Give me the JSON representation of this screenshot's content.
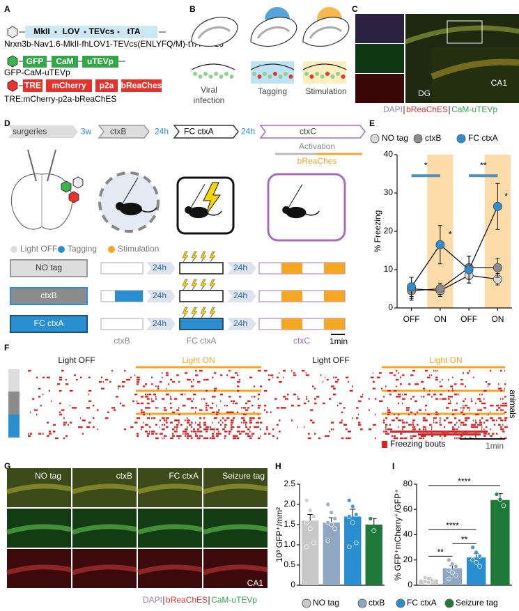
{
  "panel_labels": [
    "A",
    "B",
    "C",
    "D",
    "E",
    "F",
    "G",
    "H",
    "I"
  ],
  "a": {
    "construct1": [
      "MkII",
      "LOV",
      "TEVcs",
      "tTA"
    ],
    "name1": "Nrxn3b-Nav1.6-MkII-fhLOV1-TEVcs(ENLYFQ/M)-tTA-VP16",
    "construct2": [
      "GFP",
      "CaM",
      "uTEVp"
    ],
    "name2": "GFP-CaM-uTEVp",
    "construct3": [
      "TRE",
      "mCherry",
      "p2a",
      "bReaChes"
    ],
    "name3": "TRE:mCherry-p2a-bReaChES"
  },
  "b": {
    "step1": [
      "Viral",
      "infection"
    ],
    "step2": "Tagging",
    "step3": "Stimulation"
  },
  "c": {
    "dg": "DG",
    "ca1": "CA1",
    "caption": [
      "DAPI",
      "bReaChES",
      "CaM-uTEVp"
    ]
  },
  "d": {
    "timeline": [
      "surgeries",
      "3w",
      "ctxB",
      "24h",
      "FC ctxA",
      "24h",
      "ctxC"
    ],
    "activation": "Activation",
    "light": "bReaChes",
    "legend": [
      "Light OFF",
      "Tagging",
      "Stimulation"
    ],
    "groups": [
      "NO tag",
      "ctxB",
      "FC ctxA"
    ],
    "interval": "24h",
    "phases": [
      "ctxB",
      "FC ctxA",
      "ctxC"
    ],
    "scale": "1min"
  },
  "f": {
    "headers": [
      "Light OFF",
      "Light ON",
      "Light OFF",
      "Light ON"
    ],
    "axis": "animals",
    "legend": "Freezing bouts",
    "scale": "1min"
  },
  "g": {
    "groups": [
      "NO tag",
      "ctxB",
      "FC ctxA",
      "Seizure tag"
    ],
    "region": "CA1",
    "caption": [
      "DAPI",
      "bReaChES",
      "CaM-uTEVp"
    ]
  },
  "chart_data": [
    {
      "type": "line",
      "categories": [
        "OFF",
        "ON",
        "OFF",
        "ON"
      ],
      "ylabel": "% Freezing",
      "ylim": [
        0,
        40
      ],
      "yticks": [
        0,
        10,
        20,
        30,
        40
      ],
      "series": [
        {
          "name": "NO tag",
          "color": "#d9d9d9",
          "values": [
            5,
            4.5,
            8.5,
            7.5
          ],
          "errors": [
            3,
            1.5,
            2,
            1.5
          ]
        },
        {
          "name": "ctxB",
          "color": "#8c8c8c",
          "values": [
            4.5,
            5,
            10.5,
            10.5
          ],
          "errors": [
            2,
            1.5,
            3,
            2.5
          ]
        },
        {
          "name": "FC ctxA",
          "color": "#2a8fd0",
          "values": [
            5.5,
            16.5,
            10,
            26.5
          ],
          "errors": [
            2.5,
            5,
            3.5,
            6
          ]
        }
      ],
      "annotations": [
        "*",
        "**",
        "*",
        "*"
      ]
    },
    {
      "type": "bar",
      "ylabel": "10³ GFP⁺/mm²",
      "categories": [
        "NO tag",
        "ctxB",
        "FC ctxA",
        "Seizure tag"
      ],
      "colors": [
        "#c8c8c8",
        "#8fa7c0",
        "#2a8fd0",
        "#1f7a3a"
      ],
      "values": [
        1.6,
        1.55,
        1.7,
        1.5
      ],
      "errors": [
        0.15,
        0.12,
        0.18,
        0.15
      ],
      "points": [
        [
          2.1,
          1.85,
          1.7,
          1.55,
          1.4,
          1.05,
          0.95
        ],
        [
          2.0,
          1.8,
          1.65,
          1.55,
          1.5,
          1.4,
          1.1
        ],
        [
          2.1,
          1.95,
          1.75,
          1.7,
          1.55,
          1.05,
          0.95
        ],
        [
          1.65,
          1.35
        ]
      ],
      "ylim": [
        0,
        2.5
      ],
      "yticks": [
        0,
        0.5,
        {
          "value": 1,
          "label": "1.0"
        },
        1.5,
        {
          "value": 2,
          "label": "2.0"
        },
        2.5
      ]
    },
    {
      "type": "bar",
      "ylabel": "% GFP⁺mCherry⁺/GFP⁺",
      "categories": [
        "NO tag",
        "ctxB",
        "FC ctxA",
        "Seizure tag"
      ],
      "colors": [
        "#c8c8c8",
        "#8fa7c0",
        "#2a8fd0",
        "#1f7a3a"
      ],
      "values": [
        4.5,
        13.5,
        22,
        67.5
      ],
      "errors": [
        1.5,
        2,
        3,
        5
      ],
      "points": [
        [
          6,
          5,
          4,
          3,
          2
        ],
        [
          20,
          17,
          15,
          12,
          10,
          8,
          5
        ],
        [
          30,
          26,
          23,
          20,
          18,
          15
        ],
        [
          72,
          68,
          63
        ]
      ],
      "ylim": [
        0,
        80
      ],
      "yticks": [
        0,
        20,
        40,
        60,
        80
      ],
      "annotations": [
        "**",
        "**",
        "****",
        "****"
      ]
    }
  ]
}
